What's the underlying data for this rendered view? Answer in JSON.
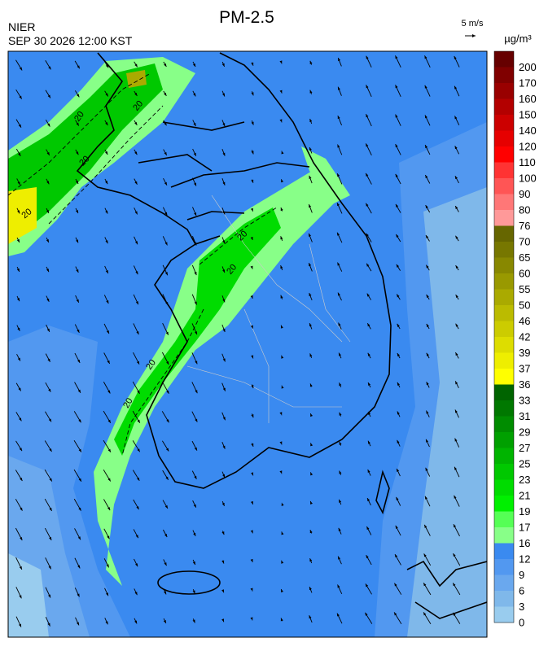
{
  "header": {
    "title": "PM-2.5",
    "agency": "NIER",
    "timestamp": "SEP 30 2026 12:00 KST",
    "wind_scale": "5 m/s"
  },
  "colorbar": {
    "unit": "µg/m³",
    "labels": [
      200,
      170,
      160,
      150,
      140,
      120,
      110,
      100,
      90,
      80,
      76,
      70,
      65,
      60,
      55,
      50,
      46,
      42,
      39,
      37,
      36,
      33,
      31,
      29,
      27,
      25,
      23,
      21,
      19,
      17,
      16,
      12,
      9,
      6,
      3,
      0
    ],
    "colors": [
      "#660000",
      "#800000",
      "#990000",
      "#b30000",
      "#cc0000",
      "#e60000",
      "#ff0000",
      "#ff3333",
      "#ff5555",
      "#ff7777",
      "#ff9999",
      "#666600",
      "#777700",
      "#888800",
      "#999900",
      "#aaaa00",
      "#bbbb00",
      "#cccc00",
      "#dddd00",
      "#eeee00",
      "#ffff00",
      "#006400",
      "#007800",
      "#008c00",
      "#00a000",
      "#00b400",
      "#00c800",
      "#00dc00",
      "#00f000",
      "#55ff55",
      "#88ff88",
      "#3a8af0",
      "#5298f0",
      "#6aa8ee",
      "#7fb8ea",
      "#99ccee"
    ]
  },
  "map": {
    "contour_labels": [
      20,
      20,
      20,
      20,
      20,
      20,
      20,
      20
    ]
  }
}
